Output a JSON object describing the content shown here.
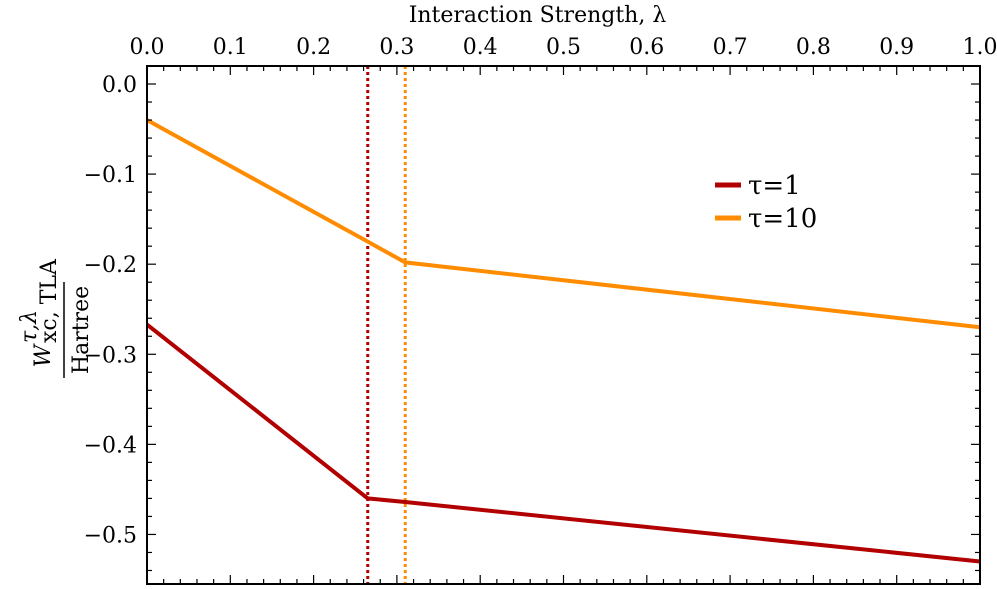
{
  "chart_data": {
    "type": "line",
    "xlabel": "Interaction Strength, λ",
    "ylabel_top": "W",
    "ylabel_sup": "τ,λ",
    "ylabel_sub": "xc, TLA",
    "ylabel_bottom": "Hartree",
    "xlim": [
      0.0,
      1.0
    ],
    "ylim": [
      -0.555,
      0.02
    ],
    "xticks": [
      "0.0",
      "0.1",
      "0.2",
      "0.3",
      "0.4",
      "0.5",
      "0.6",
      "0.7",
      "0.8",
      "0.9",
      "1.0"
    ],
    "yticks": [
      "0.0",
      "−0.1",
      "−0.2",
      "−0.3",
      "−0.4",
      "−0.5"
    ],
    "legend_position": "upper right",
    "series": [
      {
        "name": "τ=1",
        "color": "#b20000",
        "x": [
          0.0,
          0.265,
          0.31,
          1.0
        ],
        "y": [
          -0.267,
          -0.46,
          -0.464,
          -0.53
        ],
        "vline": 0.265
      },
      {
        "name": "τ=10",
        "color": "#ff8c00",
        "x": [
          0.0,
          0.265,
          0.31,
          1.0
        ],
        "y": [
          -0.04,
          -0.175,
          -0.198,
          -0.27
        ],
        "vline": 0.31
      }
    ]
  }
}
